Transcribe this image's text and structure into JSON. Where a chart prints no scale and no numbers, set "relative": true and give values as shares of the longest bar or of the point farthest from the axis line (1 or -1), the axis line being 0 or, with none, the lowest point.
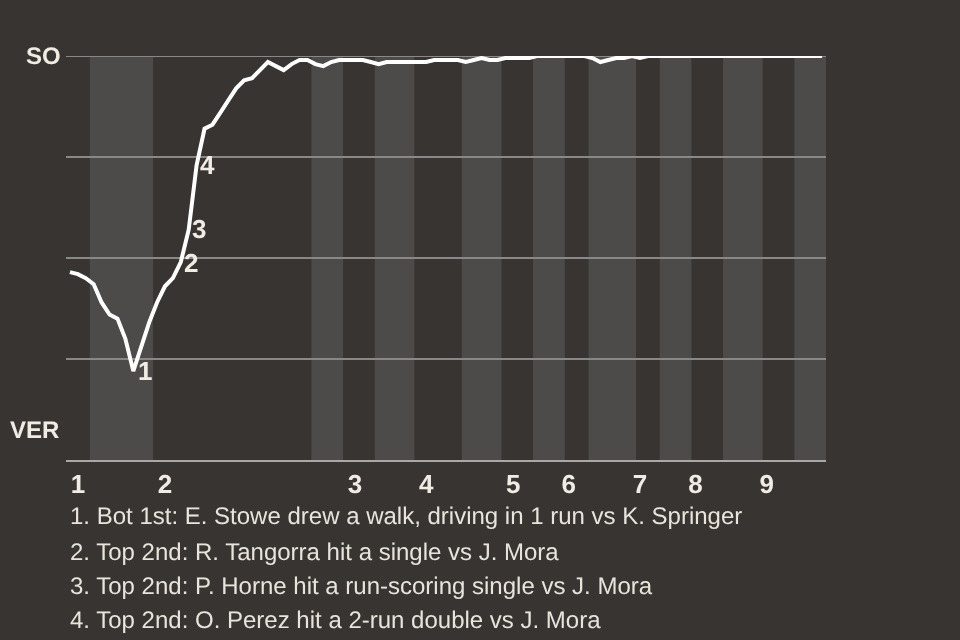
{
  "chart_data": {
    "type": "line",
    "relative": true,
    "categories": [
      null,
      "1",
      null,
      null,
      null,
      null,
      null,
      null,
      null,
      null,
      null,
      null,
      "2",
      null,
      null,
      null,
      null,
      null,
      null,
      null,
      null,
      null,
      null,
      null,
      null,
      null,
      null,
      null,
      null,
      null,
      null,
      null,
      null,
      null,
      null,
      null,
      "3",
      null,
      null,
      null,
      null,
      null,
      null,
      null,
      null,
      "4",
      null,
      null,
      null,
      null,
      null,
      null,
      null,
      null,
      null,
      null,
      "5",
      null,
      null,
      null,
      null,
      null,
      null,
      "6",
      null,
      null,
      null,
      null,
      null,
      null,
      null,
      null,
      "7",
      null,
      null,
      null,
      null,
      null,
      null,
      "8",
      null,
      null,
      null,
      null,
      null,
      null,
      null,
      null,
      "9",
      null,
      null,
      null,
      null,
      null,
      null,
      null
    ],
    "series": [
      {
        "color": "#ffffff",
        "values": [
          0.465,
          0.46,
          0.45,
          0.435,
          0.39,
          0.36,
          0.35,
          0.3,
          0.22,
          0.28,
          0.34,
          0.39,
          0.43,
          0.45,
          0.49,
          0.57,
          0.73,
          0.82,
          0.83,
          0.86,
          0.89,
          0.92,
          0.94,
          0.945,
          0.965,
          0.985,
          0.975,
          0.965,
          0.98,
          0.99,
          0.99,
          0.98,
          0.975,
          0.985,
          0.99,
          0.99,
          0.99,
          0.99,
          0.985,
          0.98,
          0.985,
          0.985,
          0.985,
          0.985,
          0.985,
          0.985,
          0.99,
          0.99,
          0.99,
          0.99,
          0.985,
          0.99,
          0.995,
          0.99,
          0.99,
          0.995,
          0.995,
          0.995,
          0.995,
          1,
          1,
          1,
          1,
          1,
          1,
          1,
          0.995,
          0.985,
          0.99,
          0.995,
          0.995,
          1,
          0.995,
          1,
          1,
          1,
          1,
          1,
          1,
          1,
          1,
          1,
          1,
          1,
          1,
          1,
          1,
          1,
          1,
          1,
          1,
          1,
          1,
          1,
          1,
          1
        ]
      }
    ],
    "ref_lines": [
      {
        "axis": "y",
        "value": 0.25,
        "color": "#8a8886"
      },
      {
        "axis": "y",
        "value": 0.5,
        "color": "#8a8886"
      },
      {
        "axis": "y",
        "value": 0.75,
        "color": "#8a8886"
      },
      {
        "axis": "y",
        "value": 1,
        "color": "#8a8886"
      }
    ],
    "annotations": [
      "SO",
      "VER",
      {
        "text": "1",
        "y": 0.22
      },
      {
        "text": "2",
        "y": 0.49
      },
      {
        "text": "3",
        "y": 0.57
      },
      {
        "text": "4",
        "y": 0.73
      },
      "1. Bot 1st: E. Stowe drew a walk, driving in 1 run vs K. Springer",
      "2. Top 2nd: R. Tangorra hit a single vs J. Mora",
      "3. Top 2nd: P. Horne hit a run-scoring single vs J. Mora",
      "4. Top 2nd: O. Perez hit a 2-run double vs J. Mora"
    ]
  }
}
